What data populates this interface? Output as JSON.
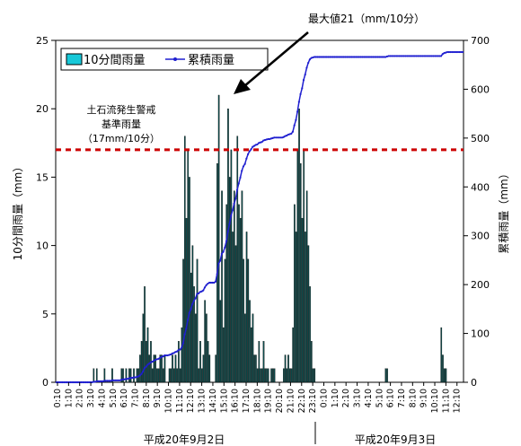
{
  "chart_data": {
    "type": "bar+line",
    "title": "",
    "legend": [
      "10分間雨量",
      "累積雨量"
    ],
    "legend_placement": "top-left",
    "ylabel_left": "10分間雨量（mm）",
    "ylabel_right": "累積雨量（mm）",
    "ylim_left": [
      0,
      25
    ],
    "ylim_right": [
      0,
      700
    ],
    "yticks_left": [
      "0",
      "5",
      "10",
      "15",
      "20",
      "25"
    ],
    "yticks_right": [
      "0",
      "100",
      "200",
      "300",
      "400",
      "500",
      "600",
      "700"
    ],
    "x_tick_labels": [
      "0:10",
      "1:10",
      "2:10",
      "3:10",
      "4:10",
      "5:10",
      "6:10",
      "7:10",
      "8:10",
      "9:10",
      "10:10",
      "11:10",
      "12:10",
      "13:10",
      "14:10",
      "15:10",
      "16:10",
      "17:10",
      "18:10",
      "19:10",
      "20:10",
      "21:10",
      "22:10",
      "23:10",
      "0:10",
      "1:10",
      "2:10",
      "3:10",
      "4:10",
      "5:10",
      "6:10",
      "7:10",
      "8:10",
      "9:10",
      "10:10",
      "11:10",
      "12:10"
    ],
    "date_labels": [
      "平成20年9月2日",
      "平成20年9月3日"
    ],
    "threshold": {
      "value": 17,
      "label_lines": [
        "土石流発生警戒",
        "基準雨量",
        "（17mm/10分）"
      ],
      "color": "#cc0000"
    },
    "annotation": "最大値21（mm/10分）",
    "grid": false,
    "bar_color": "#0b4a4a",
    "line_color": "#1f1fd0",
    "series": [
      {
        "name": "10分間雨量",
        "kind": "bar",
        "values": [
          0,
          0,
          0,
          0,
          0,
          0,
          0,
          0,
          0,
          0,
          0,
          0,
          0,
          0,
          0,
          0,
          0,
          0,
          0,
          0,
          0,
          0,
          0,
          0,
          1,
          0,
          1,
          0,
          0,
          0,
          0,
          1,
          0,
          0,
          0,
          0,
          1,
          0,
          0,
          0,
          0,
          0,
          1,
          1,
          0,
          1,
          0,
          1,
          1,
          0,
          1,
          0,
          1,
          1,
          2,
          3,
          5,
          7,
          3,
          4,
          2,
          3,
          1,
          2,
          2,
          1,
          1,
          2,
          2,
          1,
          2,
          0,
          0,
          1,
          1,
          2,
          1,
          2,
          1,
          3,
          1,
          4,
          9,
          18,
          12,
          17,
          15,
          8,
          10,
          7,
          5,
          9,
          1,
          3,
          1,
          2,
          6,
          5,
          3,
          2,
          0,
          0,
          0,
          2,
          16,
          21,
          6,
          14,
          4,
          9,
          13,
          20,
          15,
          17,
          11,
          14,
          10,
          18,
          13,
          12,
          14,
          9,
          5,
          11,
          9,
          6,
          4,
          5,
          2,
          2,
          1,
          3,
          1,
          1,
          3,
          1,
          1,
          1,
          0,
          1,
          1,
          1,
          0,
          0,
          0,
          0,
          0,
          1,
          2,
          1,
          2,
          1,
          1,
          4,
          13,
          11,
          17,
          20,
          16,
          12,
          17,
          11,
          14,
          10,
          7,
          3,
          1,
          1,
          0,
          0,
          0,
          0,
          0,
          0,
          0,
          0,
          0,
          0,
          0,
          0,
          0,
          0,
          0,
          0,
          0,
          0,
          0,
          0,
          0,
          0,
          0,
          0,
          0,
          0,
          0,
          0,
          0,
          0,
          0,
          0,
          0,
          0,
          0,
          0,
          0,
          0,
          0,
          0,
          0,
          0,
          0,
          0,
          0,
          1,
          1,
          0,
          0,
          0,
          0,
          0,
          0,
          0,
          0,
          0,
          0,
          0,
          0,
          0,
          0,
          0,
          0,
          0,
          0,
          0,
          0,
          0,
          0,
          0,
          0,
          0,
          0,
          0,
          0,
          0,
          0,
          0,
          0,
          0,
          0,
          4,
          2,
          1,
          1,
          0,
          0,
          0,
          0,
          0,
          0,
          0,
          0,
          0,
          0,
          0
        ]
      },
      {
        "name": "累積雨量",
        "kind": "line",
        "values": [
          0,
          0,
          0,
          0,
          0,
          0,
          0,
          0,
          0,
          0,
          0,
          0,
          0,
          0,
          0,
          0,
          0,
          0,
          0,
          0,
          0,
          0,
          0,
          0,
          1,
          1,
          2,
          2,
          2,
          2,
          2,
          3,
          3,
          3,
          3,
          3,
          4,
          4,
          4,
          4,
          4,
          4,
          5,
          6,
          6,
          7,
          7,
          8,
          9,
          9,
          10,
          10,
          11,
          12,
          14,
          17,
          22,
          29,
          32,
          36,
          38,
          41,
          42,
          44,
          46,
          47,
          48,
          50,
          52,
          53,
          55,
          55,
          55,
          56,
          57,
          59,
          60,
          62,
          63,
          66,
          67,
          71,
          80,
          98,
          110,
          127,
          142,
          150,
          160,
          167,
          172,
          181,
          182,
          185,
          186,
          188,
          194,
          199,
          202,
          204,
          204,
          204,
          204,
          206,
          222,
          243,
          249,
          263,
          267,
          276,
          289,
          309,
          324,
          341,
          352,
          366,
          376,
          394,
          407,
          419,
          433,
          442,
          447,
          458,
          467,
          473,
          477,
          482,
          484,
          486,
          487,
          490,
          491,
          492,
          495,
          496,
          497,
          498,
          498,
          499,
          500,
          501,
          501,
          501,
          501,
          501,
          501,
          502,
          504,
          505,
          507,
          508,
          509,
          513,
          526,
          537,
          554,
          574,
          590,
          602,
          619,
          630,
          644,
          654,
          661,
          664,
          665,
          666,
          666,
          666,
          666,
          666,
          666,
          666,
          666,
          666,
          666,
          666,
          666,
          666,
          666,
          666,
          666,
          666,
          666,
          666,
          666,
          666,
          666,
          666,
          666,
          666,
          666,
          666,
          666,
          666,
          666,
          666,
          666,
          666,
          666,
          666,
          666,
          666,
          666,
          666,
          666,
          666,
          666,
          666,
          666,
          666,
          666,
          666,
          667,
          668,
          668,
          668,
          668,
          668,
          668,
          668,
          668,
          668,
          668,
          668,
          668,
          668,
          668,
          668,
          668,
          668,
          668,
          668,
          668,
          668,
          668,
          668,
          668,
          668,
          668,
          668,
          668,
          668,
          668,
          668,
          668,
          668,
          668,
          668,
          672,
          674,
          675,
          676,
          676,
          676,
          676,
          676,
          676,
          676,
          676,
          676,
          676,
          676
        ]
      }
    ]
  }
}
